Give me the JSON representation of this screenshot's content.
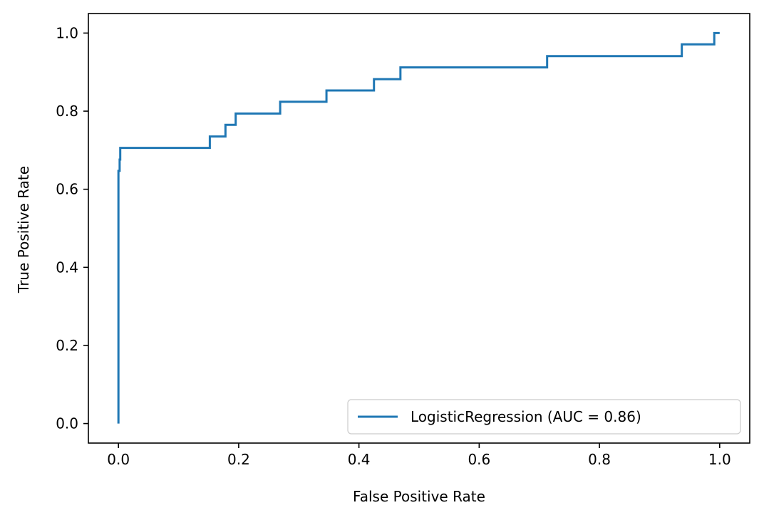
{
  "chart_data": {
    "type": "line",
    "title": "",
    "xlabel": "False Positive Rate",
    "ylabel": "True Positive Rate",
    "xlim": [
      -0.05,
      1.05
    ],
    "ylim": [
      -0.05,
      1.05
    ],
    "xticks": [
      0.0,
      0.2,
      0.4,
      0.6,
      0.8,
      1.0
    ],
    "xtick_labels": [
      "0.0",
      "0.2",
      "0.4",
      "0.6",
      "0.8",
      "1.0"
    ],
    "yticks": [
      0.0,
      0.2,
      0.4,
      0.6,
      0.8,
      1.0
    ],
    "ytick_labels": [
      "0.0",
      "0.2",
      "0.4",
      "0.6",
      "0.8",
      "1.0"
    ],
    "grid": false,
    "legend_position": "lower-right",
    "series": [
      {
        "name": "LogisticRegression (AUC = 0.86)",
        "color": "#1f77b4",
        "step": true,
        "x": [
          0.0,
          0.0,
          0.0,
          0.002,
          0.002,
          0.003,
          0.003,
          0.152,
          0.152,
          0.178,
          0.178,
          0.195,
          0.195,
          0.269,
          0.269,
          0.346,
          0.346,
          0.425,
          0.425,
          0.469,
          0.469,
          0.713,
          0.713,
          0.937,
          0.937,
          0.991,
          0.991,
          1.0
        ],
        "y": [
          0.0,
          0.647,
          0.647,
          0.647,
          0.676,
          0.676,
          0.706,
          0.706,
          0.735,
          0.735,
          0.765,
          0.765,
          0.794,
          0.794,
          0.824,
          0.824,
          0.853,
          0.853,
          0.882,
          0.882,
          0.912,
          0.912,
          0.941,
          0.941,
          0.971,
          0.971,
          1.0,
          1.0
        ]
      }
    ]
  }
}
